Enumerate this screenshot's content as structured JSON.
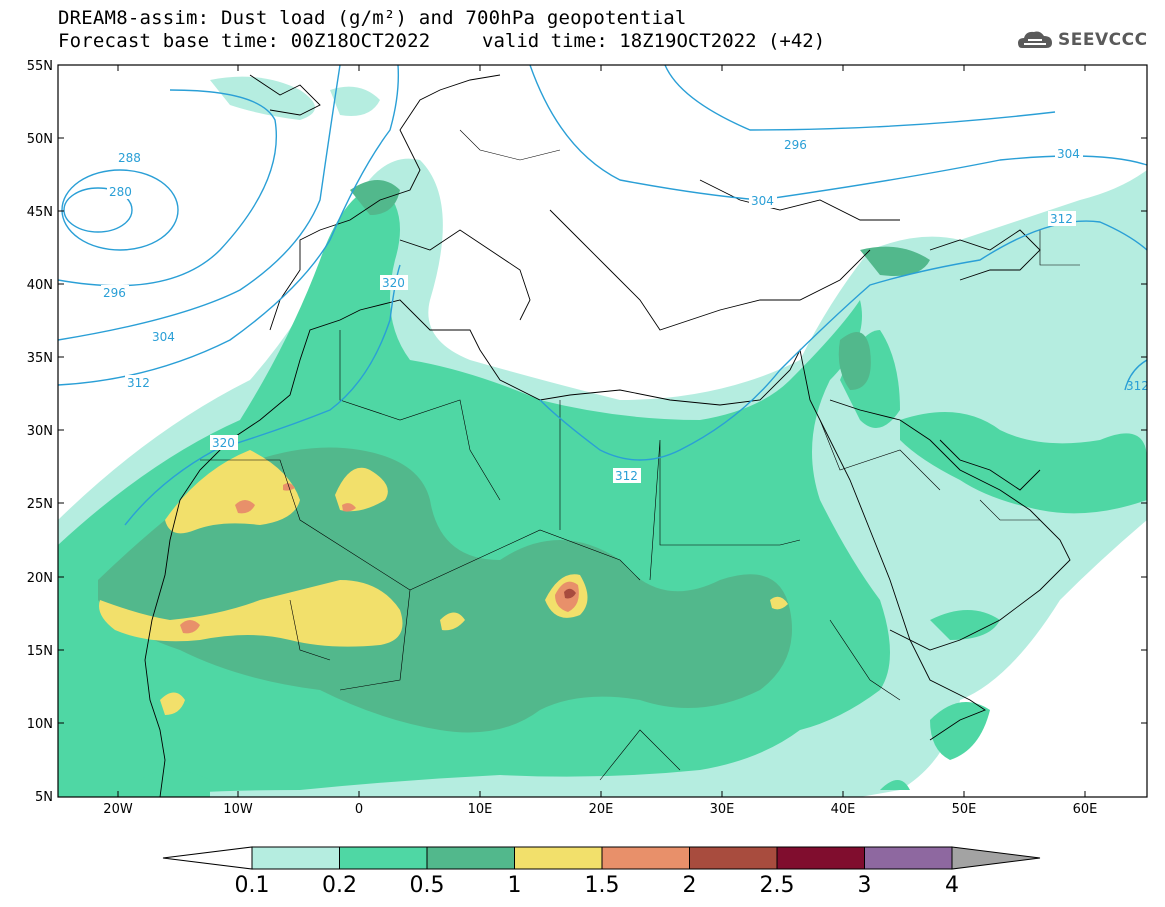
{
  "title_line1": "DREAM8-assim: Dust load (g/m²) and 700hPa geopotential",
  "title_line2": "Forecast base time: 00Z18OCT2022",
  "title_line2b": "valid time: 18Z19OCT2022 (+42)",
  "logo": "SEEVCCC",
  "lat_labels": [
    "55N",
    "50N",
    "45N",
    "40N",
    "35N",
    "30N",
    "25N",
    "20N",
    "15N",
    "10N",
    "5N"
  ],
  "lon_labels": [
    "20W",
    "10W",
    "0",
    "10E",
    "20E",
    "30E",
    "40E",
    "50E",
    "60E"
  ],
  "contour_labels": [
    "288",
    "280",
    "296",
    "304",
    "312",
    "320",
    "320",
    "312",
    "296",
    "304",
    "304",
    "312",
    "312"
  ],
  "colorbar": {
    "levels": [
      "0.1",
      "0.2",
      "0.5",
      "1",
      "1.5",
      "2",
      "2.5",
      "3",
      "4"
    ],
    "colors": [
      "#b5ede0",
      "#4fd7a4",
      "#52b88c",
      "#f2e06b",
      "#e8906a",
      "#a84c3e",
      "#800d2e",
      "#8e68a0"
    ],
    "under_color": "#ffffff",
    "over_color": "#a3a3a3"
  },
  "colors": {
    "geopotential_contour": "#2a9fd6",
    "coastline": "#000000"
  }
}
